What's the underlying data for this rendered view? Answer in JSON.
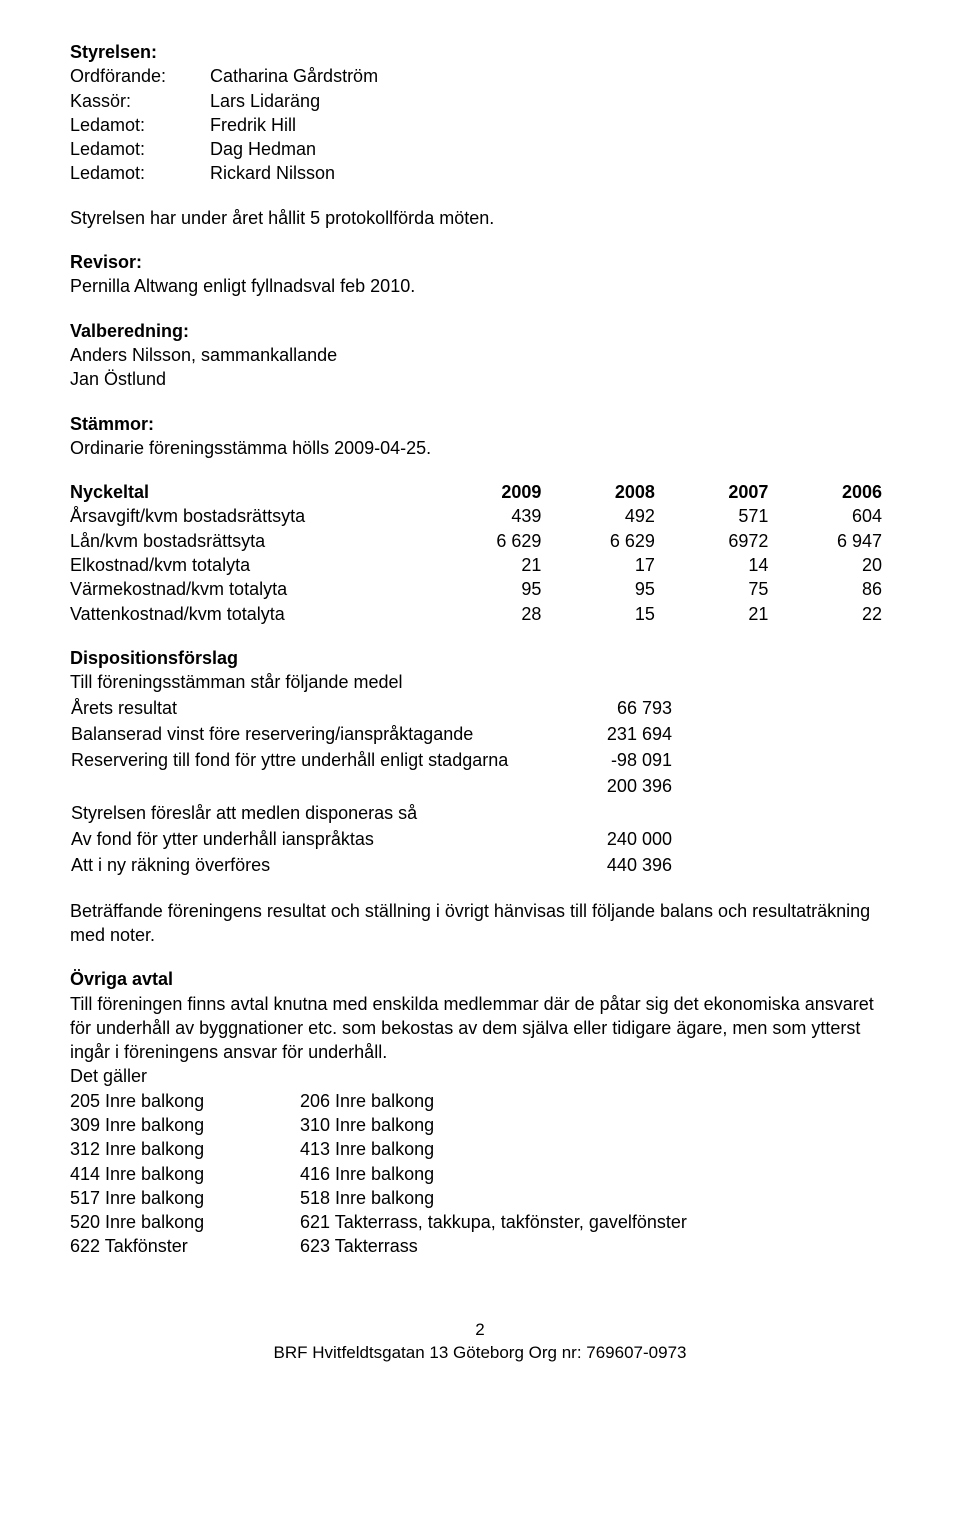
{
  "styrelsen": {
    "heading": "Styrelsen:",
    "rows": [
      {
        "label": "Ordförande:",
        "value": "Catharina Gårdström"
      },
      {
        "label": "Kassör:",
        "value": "Lars Lidaräng"
      },
      {
        "label": "Ledamot:",
        "value": "Fredrik Hill"
      },
      {
        "label": "Ledamot:",
        "value": "Dag Hedman"
      },
      {
        "label": "Ledamot:",
        "value": "Rickard Nilsson"
      }
    ],
    "note": "Styrelsen har under året hållit  5 protokollförda möten."
  },
  "revisor": {
    "heading": "Revisor:",
    "text": "Pernilla Altwang enligt fyllnadsval feb 2010."
  },
  "valberedning": {
    "heading": "Valberedning:",
    "lines": [
      "Anders Nilsson, sammankallande",
      "Jan Östlund"
    ]
  },
  "stammor": {
    "heading": "Stämmor:",
    "text": "Ordinarie föreningsstämma hölls 2009-04-25."
  },
  "nyckeltal": {
    "heading": "Nyckeltal",
    "year_cols": [
      "2009",
      "2008",
      "2007",
      "2006"
    ],
    "rows": [
      {
        "label": "Årsavgift/kvm bostadsrättsyta",
        "vals": [
          "439",
          "492",
          "571",
          "604"
        ]
      },
      {
        "label": "Lån/kvm bostadsrättsyta",
        "vals": [
          "6 629",
          "6 629",
          "6972",
          "6 947"
        ]
      },
      {
        "label": "Elkostnad/kvm totalyta",
        "vals": [
          "21",
          "17",
          "14",
          "20"
        ]
      },
      {
        "label": "Värmekostnad/kvm totalyta",
        "vals": [
          "95",
          "95",
          "75",
          "86"
        ]
      },
      {
        "label": "Vattenkostnad/kvm totalyta",
        "vals": [
          "28",
          "15",
          "21",
          "22"
        ]
      }
    ]
  },
  "disposition": {
    "heading": "Dispositionsförslag",
    "intro": "Till föreningsstämman står följande medel",
    "rows1": [
      {
        "label": "Årets resultat",
        "val": "66 793"
      },
      {
        "label": "Balanserad vinst före reservering/ianspråktagande",
        "val": "231 694"
      },
      {
        "label": "Reservering till fond för yttre underhåll enligt stadgarna",
        "val": "-98 091"
      },
      {
        "label": "",
        "val": "200 396"
      }
    ],
    "mid": "Styrelsen föreslår att medlen disponeras så",
    "rows2": [
      {
        "label": "Av fond för ytter underhåll ianspråktas",
        "val": "240 000"
      },
      {
        "label": "Att i ny räkning överföres",
        "val": "440 396"
      }
    ]
  },
  "betr": "Beträffande föreningens resultat och ställning i övrigt hänvisas till följande balans och resultaträkning med noter.",
  "ovriga": {
    "heading": "Övriga avtal",
    "para": "Till föreningen finns avtal knutna med enskilda medlemmar där de påtar sig det ekonomiska ansvaret för underhåll av byggnationer etc. som bekostas av dem själva eller tidigare ägare, men som ytterst ingår i föreningens ansvar för underhåll.",
    "det": "Det gäller",
    "pairs": [
      [
        "205 Inre balkong",
        "206 Inre balkong"
      ],
      [
        "309 Inre balkong",
        "310 Inre balkong"
      ],
      [
        "312 Inre balkong",
        "413 Inre balkong"
      ],
      [
        "414 Inre balkong",
        "416 Inre balkong"
      ],
      [
        "517 Inre balkong",
        "518 Inre balkong"
      ],
      [
        "520 Inre balkong",
        "621 Takterrass, takkupa, takfönster, gavelfönster"
      ],
      [
        "622 Takfönster",
        "623 Takterrass"
      ]
    ]
  },
  "footer": {
    "page": "2",
    "line": "BRF Hvitfeldtsgatan 13 Göteborg Org nr: 769607-0973"
  }
}
